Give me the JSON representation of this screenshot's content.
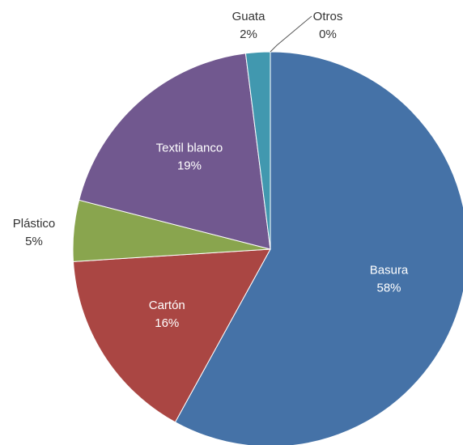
{
  "chart_data": {
    "type": "pie",
    "categories": [
      "Basura",
      "Cartón",
      "Plástico",
      "Textil blanco",
      "Guata",
      "Otros"
    ],
    "values": [
      58,
      16,
      5,
      19,
      2,
      0
    ],
    "value_labels": [
      "58%",
      "16%",
      "5%",
      "19%",
      "2%",
      "0%"
    ],
    "colors": [
      "#4572a7",
      "#aa4643",
      "#89a54e",
      "#71588f",
      "#4198af",
      "#db843d"
    ]
  }
}
